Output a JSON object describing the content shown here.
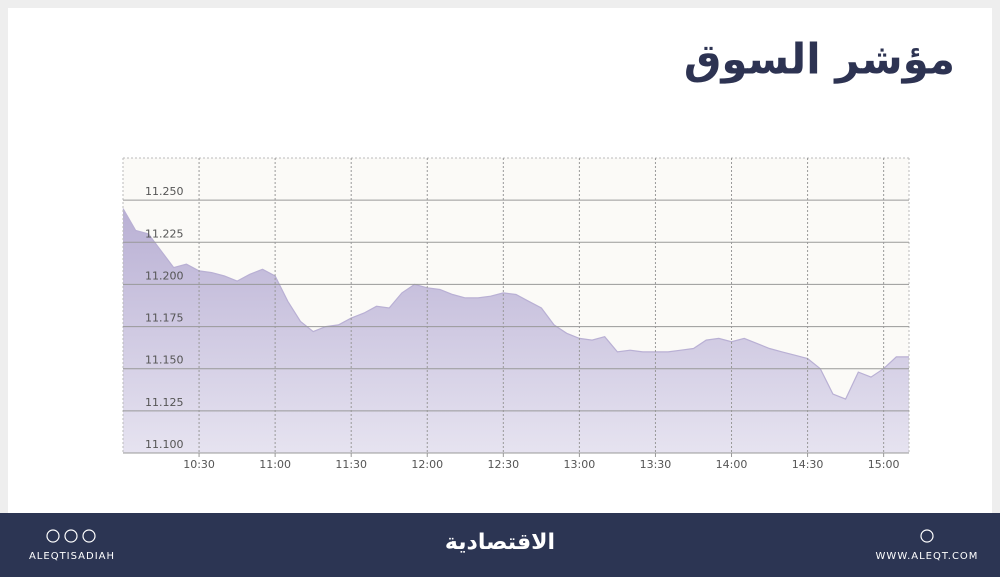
{
  "chart_data": {
    "type": "area",
    "title": "مؤشر السوق",
    "x": [
      600,
      605,
      610,
      615,
      620,
      625,
      630,
      635,
      640,
      645,
      650,
      655,
      660,
      665,
      670,
      675,
      680,
      685,
      690,
      695,
      700,
      705,
      710,
      715,
      720,
      725,
      730,
      735,
      740,
      745,
      750,
      755,
      760,
      765,
      770,
      775,
      780,
      785,
      790,
      795,
      800,
      805,
      810,
      815,
      820,
      825,
      830,
      835,
      840,
      845,
      850,
      855,
      860,
      865,
      870,
      875,
      880,
      885,
      890,
      895,
      900,
      905,
      910
    ],
    "values": [
      11.245,
      11.232,
      11.23,
      11.22,
      11.21,
      11.212,
      11.208,
      11.207,
      11.205,
      11.202,
      11.206,
      11.209,
      11.205,
      11.19,
      11.178,
      11.172,
      11.175,
      11.176,
      11.18,
      11.183,
      11.187,
      11.186,
      11.195,
      11.2,
      11.198,
      11.197,
      11.194,
      11.192,
      11.192,
      11.193,
      11.195,
      11.194,
      11.19,
      11.186,
      11.176,
      11.171,
      11.168,
      11.167,
      11.169,
      11.16,
      11.161,
      11.16,
      11.16,
      11.16,
      11.161,
      11.162,
      11.167,
      11.168,
      11.166,
      11.168,
      11.165,
      11.162,
      11.16,
      11.158,
      11.156,
      11.15,
      11.135,
      11.132,
      11.148,
      11.145,
      11.15,
      11.157,
      11.157
    ],
    "color": "#b9b0d4",
    "xlim": [
      600,
      910
    ],
    "xticks": [
      {
        "value": 630,
        "label": "10:30"
      },
      {
        "value": 660,
        "label": "11:00"
      },
      {
        "value": 690,
        "label": "11:30"
      },
      {
        "value": 720,
        "label": "12:00"
      },
      {
        "value": 750,
        "label": "12:30"
      },
      {
        "value": 780,
        "label": "13:00"
      },
      {
        "value": 810,
        "label": "13:30"
      },
      {
        "value": 840,
        "label": "14:00"
      },
      {
        "value": 870,
        "label": "14:30"
      },
      {
        "value": 900,
        "label": "15:00"
      }
    ],
    "ylim": [
      11.1,
      11.275
    ],
    "yticks": [
      {
        "value": 11.1,
        "label": "11.100"
      },
      {
        "value": 11.125,
        "label": "11.125"
      },
      {
        "value": 11.15,
        "label": "11.150"
      },
      {
        "value": 11.175,
        "label": "11.175"
      },
      {
        "value": 11.2,
        "label": "11.200"
      },
      {
        "value": 11.225,
        "label": "11.225"
      },
      {
        "value": 11.25,
        "label": "11.250"
      }
    ],
    "grid": true
  },
  "footer": {
    "left": "ALEQTISADIAH",
    "center": "الاقتصادية",
    "right": "WWW.ALEQT.COM"
  }
}
